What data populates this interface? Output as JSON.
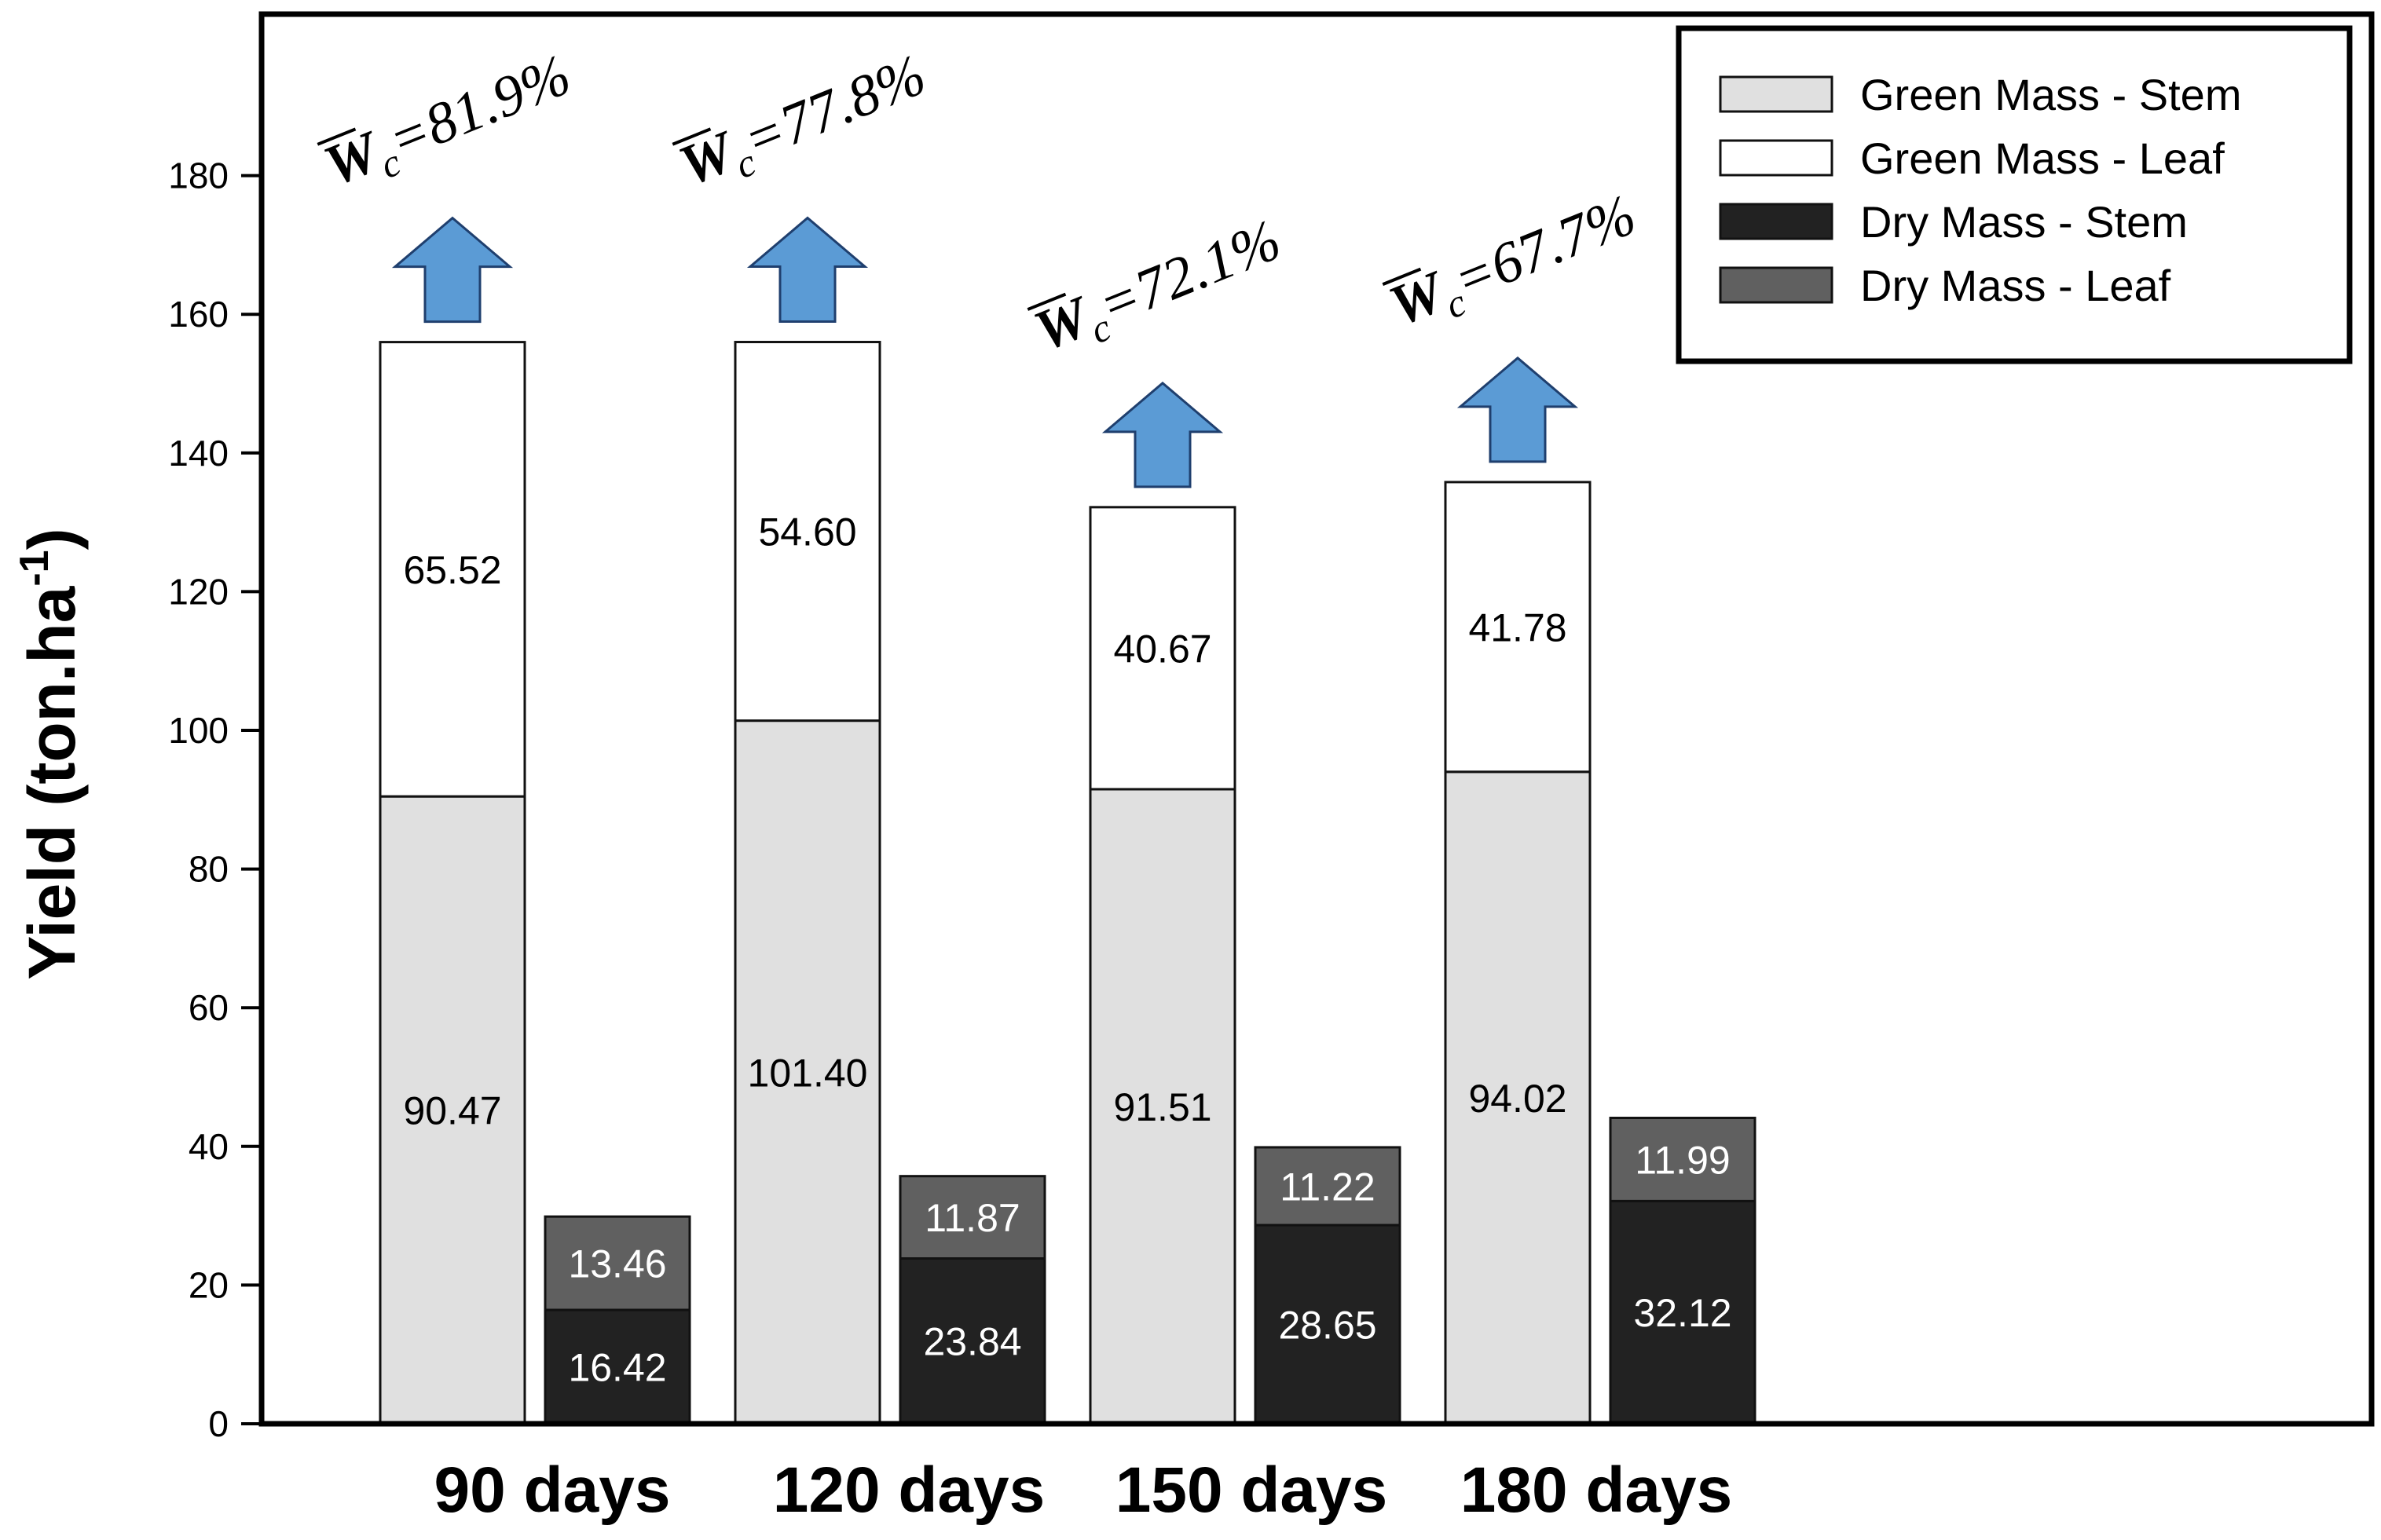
{
  "chart_data": {
    "type": "bar",
    "stacked": true,
    "title": "",
    "xlabel": "",
    "ylabel": "Yield (ton.ha",
    "ylabel_superscript": "-1",
    "ylabel_close": ")",
    "ylim": [
      0,
      200
    ],
    "yticks": [
      0,
      20,
      40,
      60,
      80,
      100,
      120,
      140,
      160,
      180
    ],
    "categories": [
      "90 days",
      "120 days",
      "150 days",
      "180 days"
    ],
    "stacks": [
      {
        "name": "Green Mass",
        "series": [
          {
            "name": "Green Mass - Stem",
            "values": [
              90.47,
              101.4,
              91.51,
              94.02
            ],
            "labels": [
              "90.47",
              "101.40",
              "91.51",
              "94.02"
            ],
            "color": "#e0e0e0"
          },
          {
            "name": "Green Mass - Leaf",
            "values": [
              65.52,
              54.6,
              40.67,
              41.78
            ],
            "labels": [
              "65.52",
              "54.60",
              "40.67",
              "41.78"
            ],
            "color": "#ffffff"
          }
        ]
      },
      {
        "name": "Dry Mass",
        "series": [
          {
            "name": "Dry Mass - Stem",
            "values": [
              16.42,
              23.84,
              28.65,
              32.12
            ],
            "labels": [
              "16.42",
              "23.84",
              "28.65",
              "32.12"
            ],
            "color": "#222222"
          },
          {
            "name": "Dry Mass - Leaf",
            "values": [
              13.46,
              11.87,
              11.22,
              11.99
            ],
            "labels": [
              "13.46",
              "11.87",
              "11.22",
              "11.99"
            ],
            "color": "#606060"
          }
        ]
      }
    ],
    "annotations": {
      "symbol": "W",
      "subscript": "c",
      "values": [
        "=81.9%",
        "=77.8%",
        "=72.1%",
        "=67.7%"
      ],
      "arrow_color": "#5b9bd5"
    },
    "legend": {
      "position": "top-right",
      "entries": [
        "Green Mass - Stem",
        "Green Mass - Leaf",
        "Dry Mass - Stem",
        "Dry Mass - Leaf"
      ]
    },
    "grid": false
  }
}
